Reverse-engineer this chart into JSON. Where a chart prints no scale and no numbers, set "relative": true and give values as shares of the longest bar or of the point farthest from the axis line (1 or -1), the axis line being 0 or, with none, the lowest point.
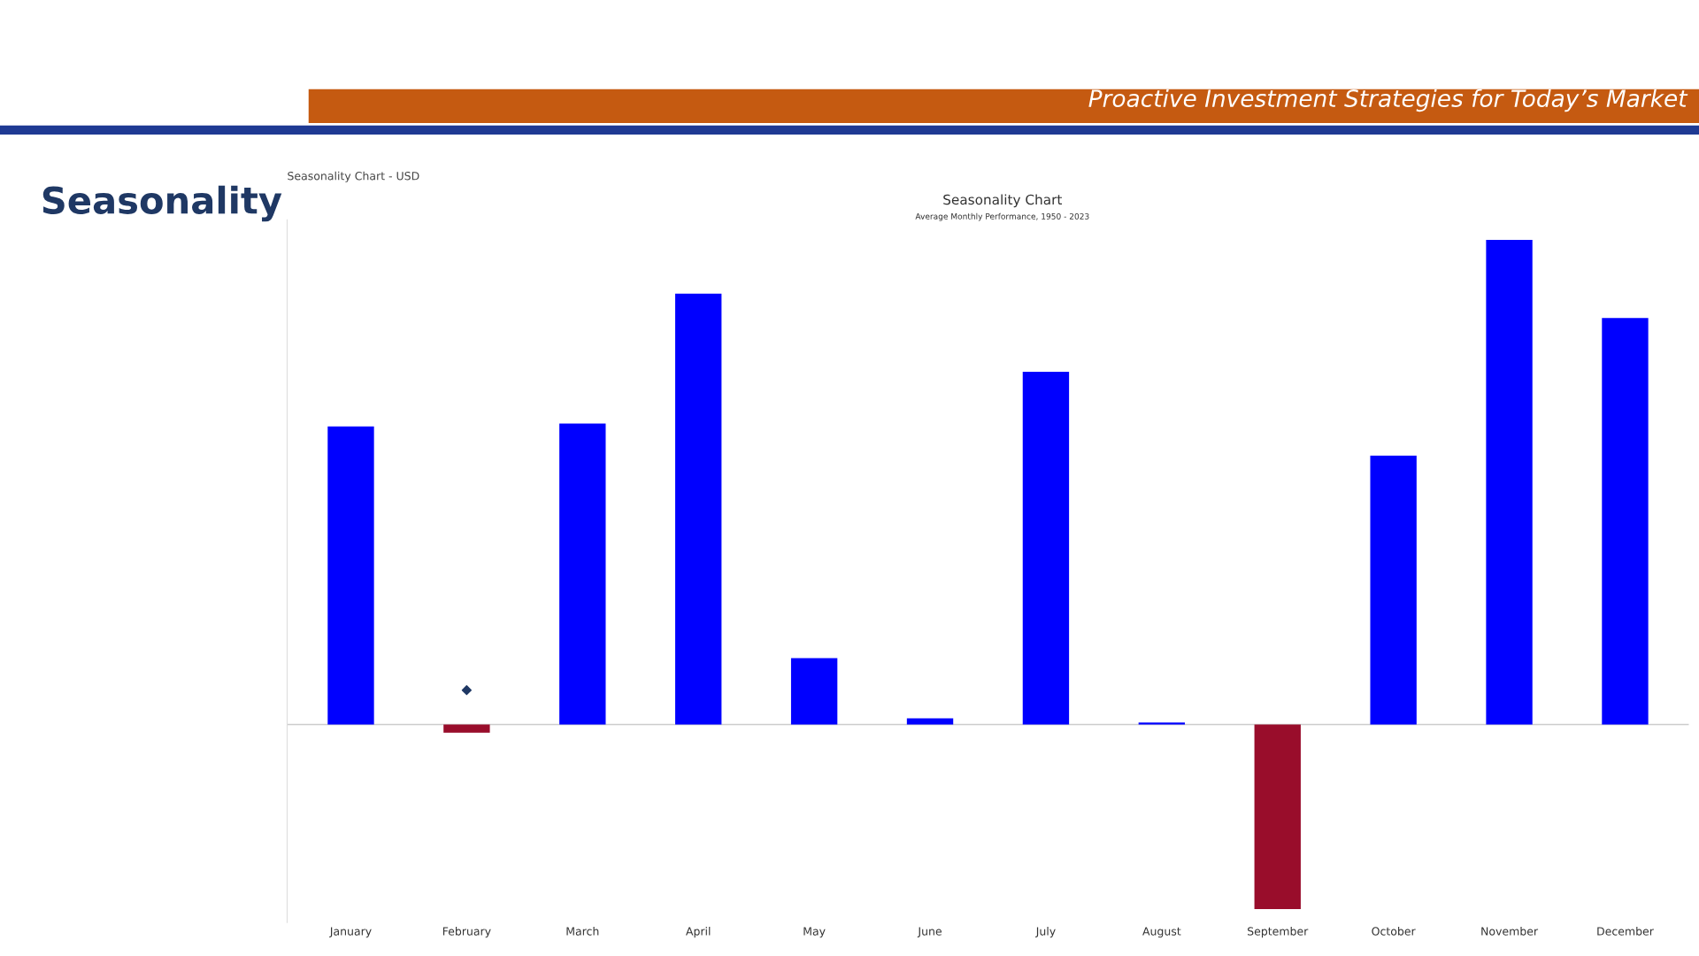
{
  "chart_data": {
    "type": "bar",
    "title": "Seasonality Chart",
    "subtitle": "Average Monthly Performance, 1950 - 2023",
    "categories": [
      "January",
      "February",
      "March",
      "April",
      "May",
      "June",
      "July",
      "August",
      "September",
      "October",
      "November",
      "December"
    ],
    "relative": true,
    "series": [
      {
        "values": [
          0.615,
          -0.017,
          0.621,
          0.889,
          0.137,
          0.013,
          0.728,
          0.004,
          -0.381,
          0.555,
          1.0,
          0.839
        ],
        "colors": [
          "#0000ff",
          "#990d2b",
          "#0000ff",
          "#0000ff",
          "#0000ff",
          "#0000ff",
          "#0000ff",
          "#0000ff",
          "#990d2b",
          "#0000ff",
          "#0000ff",
          "#0000ff"
        ]
      },
      {
        "type": "scatter",
        "x": [
          "February"
        ],
        "values": [
          0.071
        ],
        "color": "#1f3864",
        "marker": "diamond"
      }
    ],
    "annotations": [
      "Seasonality",
      "Seasonality Chart - USD",
      "Proactive Investment Strategies for Today’s Market"
    ],
    "grid": false,
    "legend": false
  }
}
